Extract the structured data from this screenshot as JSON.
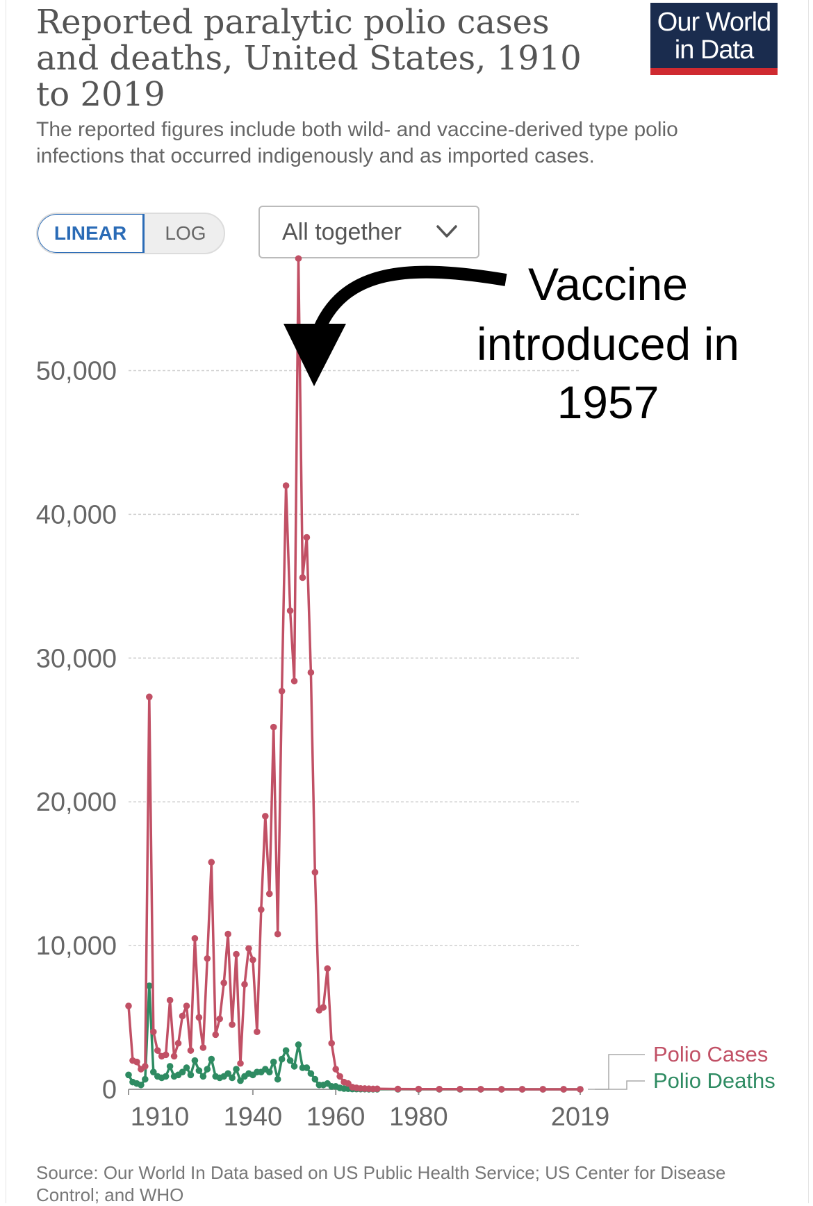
{
  "header": {
    "title": "Reported paralytic polio cases and deaths, United States, 1910 to 2019",
    "subtitle": "The reported figures include both wild- and vaccine-derived type polio infections that occurred indigenously and as imported cases.",
    "logo_line1": "Our World",
    "logo_line2": "in Data"
  },
  "controls": {
    "linear_label": "LINEAR",
    "log_label": "LOG",
    "dropdown_label": "All together",
    "dropdown_icon": "chevron-down-icon"
  },
  "colors": {
    "cases": "#c15065",
    "deaths": "#2e8b62",
    "arrow": "#000000"
  },
  "annotation": {
    "lines": [
      "Vaccine",
      "introduced in",
      "1957"
    ]
  },
  "footer": {
    "source": "Source: Our World In Data based on US Public Health Service; US Center for Disease Control; and WHO"
  },
  "chart_data": {
    "type": "line",
    "title": "Reported paralytic polio cases and deaths, United States, 1910 to 2019",
    "xlabel": "",
    "ylabel": "",
    "xlim": [
      1910,
      2019
    ],
    "ylim": [
      0,
      58000
    ],
    "yticks": [
      0,
      10000,
      20000,
      30000,
      40000,
      50000
    ],
    "ytick_labels": [
      "0",
      "10,000",
      "20,000",
      "30,000",
      "40,000",
      "50,000"
    ],
    "xticks": [
      1910,
      1940,
      1960,
      1980,
      2019
    ],
    "xtick_labels": [
      "1910",
      "1940",
      "1960",
      "1980",
      "2019"
    ],
    "grid": true,
    "legend": "right",
    "series": [
      {
        "name": "Polio Cases",
        "x": [
          1910,
          1911,
          1912,
          1913,
          1914,
          1915,
          1916,
          1917,
          1918,
          1919,
          1920,
          1921,
          1922,
          1923,
          1924,
          1925,
          1926,
          1927,
          1928,
          1929,
          1930,
          1931,
          1932,
          1933,
          1934,
          1935,
          1936,
          1937,
          1938,
          1939,
          1940,
          1941,
          1942,
          1943,
          1944,
          1945,
          1946,
          1947,
          1948,
          1949,
          1950,
          1951,
          1952,
          1953,
          1954,
          1955,
          1956,
          1957,
          1958,
          1959,
          1960,
          1961,
          1962,
          1963,
          1964,
          1965,
          1966,
          1967,
          1968,
          1969,
          1970,
          1975,
          1980,
          1985,
          1990,
          1995,
          2000,
          2005,
          2010,
          2015,
          2019
        ],
        "y": [
          5800,
          2000,
          1900,
          1400,
          1600,
          27300,
          4000,
          2700,
          2300,
          2400,
          6200,
          2300,
          3200,
          5100,
          5800,
          2700,
          10500,
          5000,
          2900,
          9100,
          15800,
          3800,
          4900,
          7400,
          10800,
          4500,
          9400,
          1800,
          7300,
          9800,
          9000,
          4000,
          12500,
          19000,
          13600,
          25200,
          10800,
          27700,
          42000,
          33300,
          28400,
          57800,
          35600,
          38400,
          29000,
          15100,
          5500,
          5700,
          8400,
          3200,
          1400,
          900,
          500,
          400,
          150,
          100,
          60,
          50,
          40,
          25,
          35,
          20,
          15,
          10,
          10,
          5,
          2,
          2,
          1,
          1,
          0
        ]
      },
      {
        "name": "Polio Deaths",
        "x": [
          1910,
          1911,
          1912,
          1913,
          1914,
          1915,
          1916,
          1917,
          1918,
          1919,
          1920,
          1921,
          1922,
          1923,
          1924,
          1925,
          1926,
          1927,
          1928,
          1929,
          1930,
          1931,
          1932,
          1933,
          1934,
          1935,
          1936,
          1937,
          1938,
          1939,
          1940,
          1941,
          1942,
          1943,
          1944,
          1945,
          1946,
          1947,
          1948,
          1949,
          1950,
          1951,
          1952,
          1953,
          1954,
          1955,
          1956,
          1957,
          1958,
          1959,
          1960,
          1961,
          1962,
          1963,
          1964,
          1965,
          1966,
          1967,
          1968,
          1969,
          1970,
          1975,
          1980,
          1985,
          1990,
          1995,
          2000,
          2005,
          2010,
          2015,
          2019
        ],
        "y": [
          1000,
          500,
          400,
          300,
          700,
          7200,
          1200,
          900,
          800,
          900,
          1600,
          900,
          1000,
          1200,
          1500,
          1000,
          2000,
          1300,
          900,
          1400,
          2100,
          900,
          800,
          900,
          1100,
          800,
          1400,
          600,
          900,
          1100,
          1000,
          1200,
          1200,
          1400,
          1200,
          1900,
          700,
          2100,
          2700,
          2000,
          1600,
          3100,
          1500,
          1500,
          1100,
          700,
          300,
          300,
          400,
          200,
          200,
          100,
          50,
          40,
          20,
          15,
          10,
          10,
          5,
          5,
          5,
          3,
          2,
          1,
          1,
          0,
          0,
          0,
          0,
          0,
          0
        ]
      }
    ]
  }
}
